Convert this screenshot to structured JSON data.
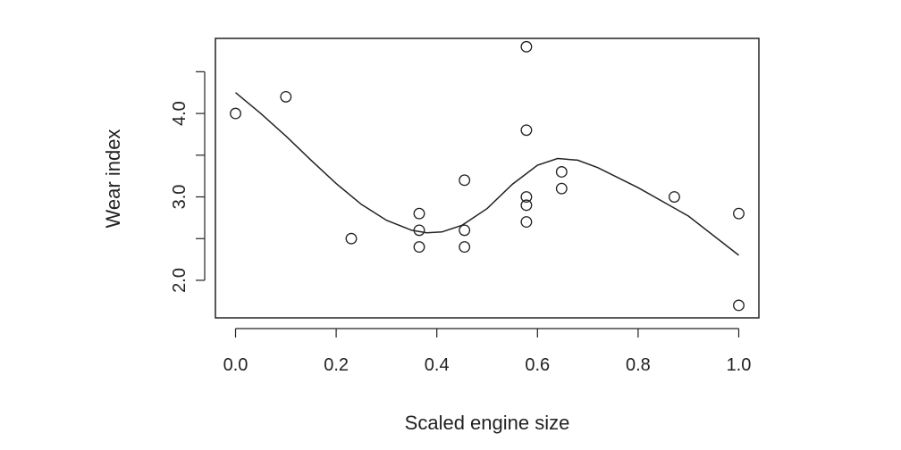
{
  "chart_data": {
    "type": "scatter",
    "title": "",
    "xlabel": "Scaled engine size",
    "ylabel": "Wear index",
    "xlim": [
      -0.04,
      1.04
    ],
    "ylim": [
      1.55,
      4.9
    ],
    "x_ticks": [
      0.0,
      0.2,
      0.4,
      0.6,
      0.8,
      1.0
    ],
    "x_tick_labels": [
      "0.0",
      "0.2",
      "0.4",
      "0.6",
      "0.8",
      "1.0"
    ],
    "y_ticks": [
      2.0,
      2.5,
      3.0,
      3.5,
      4.0,
      4.5
    ],
    "y_tick_labels": [
      "2.0",
      "",
      "3.0",
      "",
      "4.0",
      ""
    ],
    "grid": false,
    "legend": "none",
    "series": [
      {
        "kind": "points",
        "marker": "open-circle",
        "points": [
          {
            "x": 0.0,
            "y": 4.0
          },
          {
            "x": 0.1,
            "y": 4.2
          },
          {
            "x": 0.23,
            "y": 2.5
          },
          {
            "x": 0.365,
            "y": 2.8
          },
          {
            "x": 0.365,
            "y": 2.6
          },
          {
            "x": 0.365,
            "y": 2.4
          },
          {
            "x": 0.455,
            "y": 3.2
          },
          {
            "x": 0.455,
            "y": 2.6
          },
          {
            "x": 0.455,
            "y": 2.4
          },
          {
            "x": 0.578,
            "y": 4.8
          },
          {
            "x": 0.578,
            "y": 3.8
          },
          {
            "x": 0.578,
            "y": 3.0
          },
          {
            "x": 0.578,
            "y": 2.9
          },
          {
            "x": 0.578,
            "y": 2.7
          },
          {
            "x": 0.648,
            "y": 3.3
          },
          {
            "x": 0.648,
            "y": 3.1
          },
          {
            "x": 0.872,
            "y": 3.0
          },
          {
            "x": 1.0,
            "y": 2.8
          },
          {
            "x": 1.0,
            "y": 1.7
          }
        ]
      },
      {
        "kind": "line",
        "style": "smooth-fit",
        "points": [
          {
            "x": 0.0,
            "y": 4.25
          },
          {
            "x": 0.05,
            "y": 4.0
          },
          {
            "x": 0.1,
            "y": 3.73
          },
          {
            "x": 0.15,
            "y": 3.44
          },
          {
            "x": 0.2,
            "y": 3.16
          },
          {
            "x": 0.25,
            "y": 2.91
          },
          {
            "x": 0.3,
            "y": 2.72
          },
          {
            "x": 0.35,
            "y": 2.6
          },
          {
            "x": 0.38,
            "y": 2.57
          },
          {
            "x": 0.41,
            "y": 2.58
          },
          {
            "x": 0.45,
            "y": 2.66
          },
          {
            "x": 0.5,
            "y": 2.86
          },
          {
            "x": 0.55,
            "y": 3.15
          },
          {
            "x": 0.6,
            "y": 3.38
          },
          {
            "x": 0.64,
            "y": 3.46
          },
          {
            "x": 0.68,
            "y": 3.44
          },
          {
            "x": 0.72,
            "y": 3.35
          },
          {
            "x": 0.8,
            "y": 3.11
          },
          {
            "x": 0.9,
            "y": 2.77
          },
          {
            "x": 1.0,
            "y": 2.3
          }
        ]
      }
    ]
  }
}
